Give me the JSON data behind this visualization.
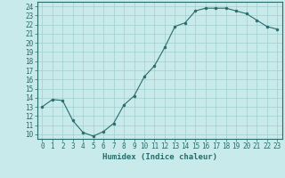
{
  "x": [
    0,
    1,
    2,
    3,
    4,
    5,
    6,
    7,
    8,
    9,
    10,
    11,
    12,
    13,
    14,
    15,
    16,
    17,
    18,
    19,
    20,
    21,
    22,
    23
  ],
  "y": [
    13,
    13.8,
    13.7,
    11.5,
    10.2,
    9.8,
    10.3,
    11.2,
    13.2,
    14.2,
    16.3,
    17.5,
    19.5,
    21.8,
    22.2,
    23.5,
    23.8,
    23.8,
    23.8,
    23.5,
    23.2,
    22.5,
    21.8,
    21.5
  ],
  "xlabel": "Humidex (Indice chaleur)",
  "ylim": [
    9.5,
    24.5
  ],
  "xlim": [
    -0.5,
    23.5
  ],
  "yticks": [
    10,
    11,
    12,
    13,
    14,
    15,
    16,
    17,
    18,
    19,
    20,
    21,
    22,
    23,
    24
  ],
  "xticks": [
    0,
    1,
    2,
    3,
    4,
    5,
    6,
    7,
    8,
    9,
    10,
    11,
    12,
    13,
    14,
    15,
    16,
    17,
    18,
    19,
    20,
    21,
    22,
    23
  ],
  "line_color": "#2a6b6b",
  "marker_color": "#2a6b6b",
  "bg_color": "#c8eaea",
  "grid_color": "#a0d0ce",
  "axis_color": "#2a6b6b",
  "xlabel_fontsize": 6.5,
  "tick_fontsize": 5.5
}
